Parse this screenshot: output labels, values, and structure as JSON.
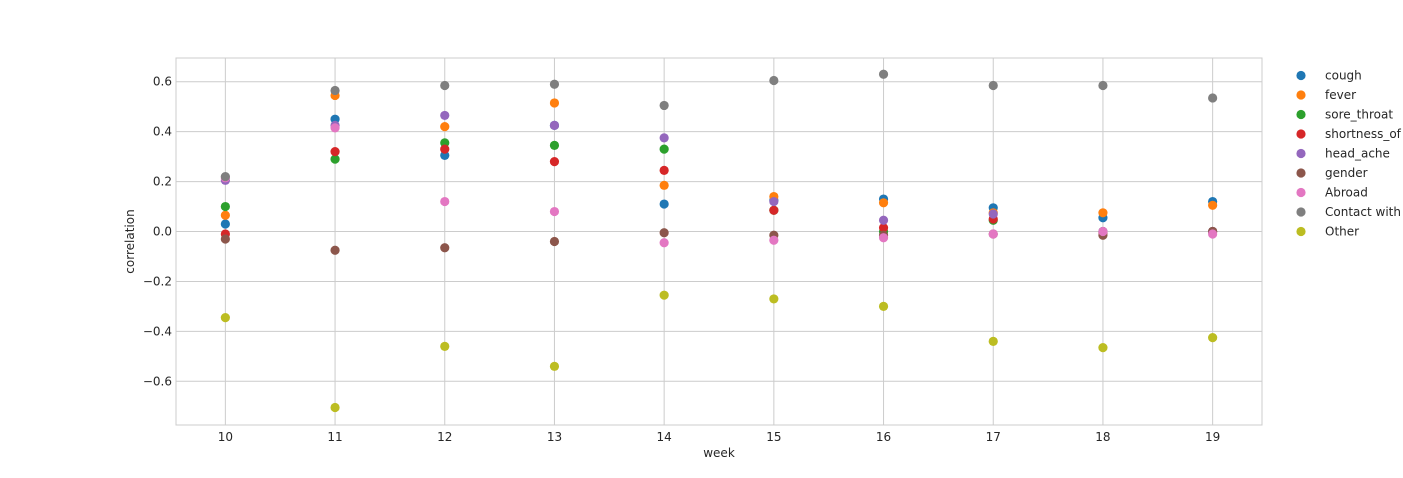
{
  "chart_data": {
    "type": "scatter",
    "xlabel": "week",
    "ylabel": "correlation",
    "x": [
      10,
      11,
      12,
      13,
      14,
      15,
      16,
      17,
      18,
      19
    ],
    "xlim": [
      9.55,
      19.45
    ],
    "ylim": [
      -0.775,
      0.695
    ],
    "xticks": [
      "10",
      "11",
      "12",
      "13",
      "14",
      "15",
      "16",
      "17",
      "18",
      "19"
    ],
    "yticks": [
      {
        "value": 0.6,
        "label": "0.6"
      },
      {
        "value": 0.4,
        "label": "0.4"
      },
      {
        "value": 0.2,
        "label": "0.2"
      },
      {
        "value": 0.0,
        "label": "0.0"
      },
      {
        "value": -0.2,
        "label": "−0.2"
      },
      {
        "value": -0.4,
        "label": "−0.4"
      },
      {
        "value": -0.6,
        "label": "−0.6"
      }
    ],
    "grid": true,
    "legend_position": "outside-right",
    "series": [
      {
        "name": "cough",
        "color": "#1f77b4",
        "values": [
          0.03,
          0.45,
          0.305,
          0.425,
          0.11,
          0.125,
          0.13,
          0.095,
          0.055,
          0.12
        ]
      },
      {
        "name": "fever",
        "color": "#ff7f0e",
        "values": [
          0.065,
          0.545,
          0.42,
          0.515,
          0.185,
          0.14,
          0.115,
          0.075,
          0.075,
          0.105
        ]
      },
      {
        "name": "sore_throat",
        "color": "#2ca02c",
        "values": [
          0.1,
          0.29,
          0.355,
          0.345,
          0.33,
          0.085,
          0.0,
          0.045,
          0.0,
          0.0
        ]
      },
      {
        "name": "shortness_of",
        "color": "#d62728",
        "values": [
          -0.01,
          0.32,
          0.33,
          0.28,
          0.245,
          0.085,
          0.015,
          0.05,
          -0.005,
          0.0
        ]
      },
      {
        "name": "head_ache",
        "color": "#9467bd",
        "values": [
          0.205,
          0.425,
          0.465,
          0.425,
          0.375,
          0.12,
          0.045,
          0.07,
          0.0,
          0.0
        ]
      },
      {
        "name": "gender",
        "color": "#8c564b",
        "values": [
          -0.03,
          -0.075,
          -0.065,
          -0.04,
          -0.005,
          -0.015,
          -0.015,
          -0.01,
          -0.015,
          0.0
        ]
      },
      {
        "name": "Abroad",
        "color": "#e377c2",
        "values": [
          0.215,
          0.415,
          0.12,
          0.08,
          -0.045,
          -0.035,
          -0.025,
          -0.01,
          0.0,
          -0.01
        ]
      },
      {
        "name": "Contact with",
        "color": "#7f7f7f",
        "values": [
          0.22,
          0.565,
          0.585,
          0.59,
          0.505,
          0.605,
          0.63,
          0.585,
          0.585,
          0.535
        ]
      },
      {
        "name": "Other",
        "color": "#bcbd22",
        "values": [
          -0.345,
          -0.705,
          -0.46,
          -0.54,
          -0.255,
          -0.27,
          -0.3,
          -0.44,
          -0.465,
          -0.425
        ]
      }
    ]
  }
}
